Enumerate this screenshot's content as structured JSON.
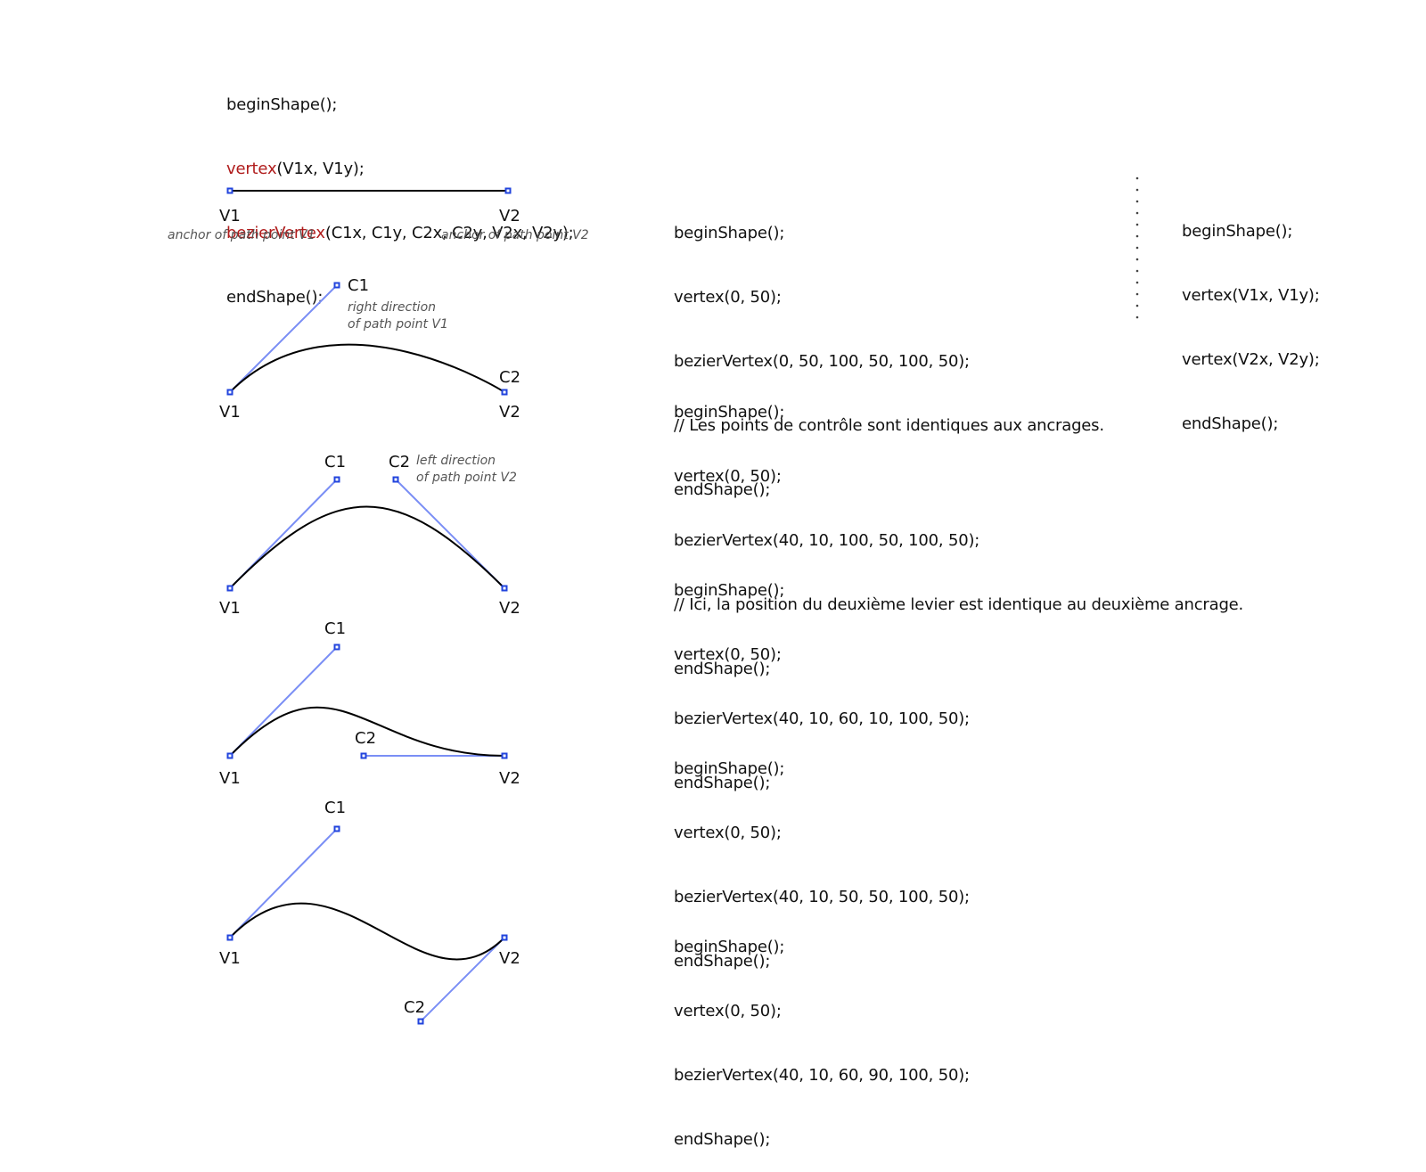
{
  "header_code": {
    "line1": "beginShape();",
    "line2_fn": "vertex",
    "line2_args": "(V1x, V1y);",
    "line3_fn": "bezierVertex",
    "line3_args": "(C1x, C1y, C2x, C2y, V2x, V2y);",
    "line4": "endShape();"
  },
  "examples": [
    {
      "code": [
        "beginShape();",
        "vertex(0, 50);",
        "bezierVertex(0, 50, 100, 50, 100, 50);",
        "// Les points de contrôle sont identiques aux ancrages.",
        "endShape();"
      ],
      "labels": {
        "v1": "V1",
        "v2": "V2"
      },
      "notes": {
        "v1": "anchor of path point V1",
        "v2": "anchor of path point V2"
      }
    },
    {
      "code": [
        "beginShape();",
        "vertex(0, 50);",
        "bezierVertex(40, 10, 100, 50, 100, 50);",
        "// Ici, la position du deuxième levier est identique au deuxième ancrage.",
        "endShape();"
      ],
      "labels": {
        "v1": "V1",
        "v2": "V2",
        "c1": "C1",
        "c2": "C2"
      },
      "notes": {
        "c1_line1": "right direction",
        "c1_line2": "of path point V1"
      }
    },
    {
      "code": [
        "beginShape();",
        "vertex(0, 50);",
        "bezierVertex(40, 10, 60, 10, 100, 50);",
        "endShape();"
      ],
      "labels": {
        "v1": "V1",
        "v2": "V2",
        "c1": "C1",
        "c2": "C2"
      },
      "notes": {
        "c2_line1": "left direction",
        "c2_line2": "of path point V2"
      }
    },
    {
      "code": [
        "beginShape();",
        "vertex(0, 50);",
        "bezierVertex(40, 10, 50, 50, 100, 50);",
        "endShape();"
      ],
      "labels": {
        "v1": "V1",
        "v2": "V2",
        "c1": "C1",
        "c2": "C2"
      }
    },
    {
      "code": [
        "beginShape();",
        "vertex(0, 50);",
        "bezierVertex(40, 10, 60, 90, 100, 50);",
        "endShape();"
      ],
      "labels": {
        "v1": "V1",
        "v2": "V2",
        "c1": "C1",
        "c2": "C2"
      }
    }
  ],
  "side_code": [
    "beginShape();",
    "vertex(V1x, V1y);",
    "vertex(V2x, V2y);",
    "endShape();"
  ],
  "colors": {
    "handle": "#7a8ef5",
    "point": "#2244dd",
    "keyword": "#b01c1c",
    "curve": "#000000"
  }
}
